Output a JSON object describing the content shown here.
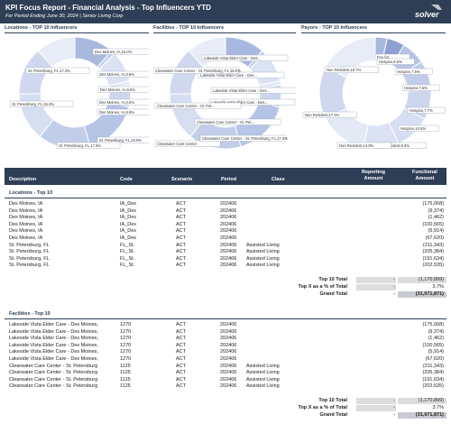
{
  "header": {
    "title": "KPI Focus Report - Financial Analysis - Top Influencers YTD",
    "subtitle": "For Period Ending June 30, 2024 | Senior Living Corp",
    "logo_text": "solver"
  },
  "panels": [
    {
      "title": "Locations - TOP 10 Influencers",
      "labels": [
        "Des Moines, IA,15.0%",
        "Des Moines, IA,0.8%",
        "Des Moines, IA,8.6%",
        "Des Moines, IA,0.5%",
        "Des Moines, IA,5.8%",
        "St. Petersburg, FL,18.0%",
        "St. Petersburg, FL,17.5%",
        "St. Petersburg, FL,16.4%",
        "St. Petersburg, FL,17.3%"
      ],
      "colors": [
        "#a9b8de",
        "#c7d1ec",
        "#dbe2f4",
        "#e4e9f6",
        "#ccd6ee",
        "#b6c4e6",
        "#c2cdea",
        "#d6def2",
        "#cfd8ef",
        "#e8ecf7"
      ]
    },
    {
      "title": "Facilities - TOP 10 Influencers",
      "labels": [
        "Lakeside Vista Elder Care - Des...",
        "Lakeside Vista Elder Care - Des...",
        "Lakeside Vista Elder Care - Des...",
        "Lakeside Vista Elder Care - Des...",
        "Clearwater Care Center - St. Pet...",
        "Clearwater Care Center - St. Pet...",
        "Clearwater Care Center",
        "Clearwater Care Center - St. Petersburg, FL,17.3%",
        "Clearwater Care Center - St. Petersburg, FL,15.0%"
      ],
      "colors": [
        "#a9b8de",
        "#c7d1ec",
        "#dbe2f4",
        "#e4e9f6",
        "#ccd6ee",
        "#b6c4e6",
        "#c2cdea",
        "#d6def2",
        "#cfd8ef",
        "#e8ecf7"
      ]
    },
    {
      "title": "Payors - TOP 10 Influencers",
      "labels": [
        "Fee for ...",
        "Hospice,6.5%",
        "Hospice,7.5%",
        "Hospice,7.5%",
        "Hospice,7.7%",
        "Hospice,10.5%",
        "Non Resident,9.4%",
        "Non Resident,14.8%",
        "Non Resident,17.4%",
        "Non Resident,19.7%"
      ],
      "colors": [
        "#a9b8de",
        "#8f9fd0",
        "#b6c4e6",
        "#c2cdea",
        "#ccd6ee",
        "#d6def2",
        "#dbe2f4",
        "#e4e9f6",
        "#cfd8ef",
        "#e8ecf7"
      ]
    }
  ],
  "table": {
    "columns": {
      "desc": "Description",
      "code": "Code",
      "scenario": "Scenario",
      "period": "Period",
      "class": "Class",
      "reporting_l1": "Reporting",
      "reporting_l2": "Amount",
      "functional_l1": "Functional",
      "functional_l2": "Amount"
    },
    "sections": [
      {
        "title": "Locations - Top 10",
        "rows": [
          {
            "desc": "Des Moines, IA",
            "code": "IA_Des",
            "scen": "ACT",
            "per": "202406",
            "cls": "",
            "amt": "(175,068)"
          },
          {
            "desc": "Des Moines, IA",
            "code": "IA_Des",
            "scen": "ACT",
            "per": "202406",
            "cls": "",
            "amt": "(9,374)"
          },
          {
            "desc": "Des Moines, IA",
            "code": "IA_Des",
            "scen": "ACT",
            "per": "202406",
            "cls": "",
            "amt": "(1,462)"
          },
          {
            "desc": "Des Moines, IA",
            "code": "IA_Des",
            "scen": "ACT",
            "per": "202406",
            "cls": "",
            "amt": "(100,565)"
          },
          {
            "desc": "Des Moines, IA",
            "code": "IA_Des",
            "scen": "ACT",
            "per": "202406",
            "cls": "",
            "amt": "(5,914)"
          },
          {
            "desc": "Des Moines, IA",
            "code": "IA_Des",
            "scen": "ACT",
            "per": "202406",
            "cls": "",
            "amt": "(67,620)"
          },
          {
            "desc": "St. Petersburg, FL",
            "code": "FL_St.",
            "scen": "ACT",
            "per": "202406",
            "cls": "Assisted Living",
            "amt": "(211,343)"
          },
          {
            "desc": "St. Petersburg, FL",
            "code": "FL_St.",
            "scen": "ACT",
            "per": "202406",
            "cls": "Assisted Living",
            "amt": "(205,384)"
          },
          {
            "desc": "St. Petersburg, FL",
            "code": "FL_St.",
            "scen": "ACT",
            "per": "202406",
            "cls": "Assisted Living",
            "amt": "(191,634)"
          },
          {
            "desc": "St. Petersburg, FL",
            "code": "FL_St.",
            "scen": "ACT",
            "per": "202406",
            "cls": "Assisted Living",
            "amt": "(202,535)"
          }
        ],
        "totals": [
          {
            "label": "Top 10 Total",
            "rep": "-",
            "amt": "(1,170,899)"
          },
          {
            "label": "Top X as a % of Total",
            "rep": "-",
            "amt": "3.7%"
          },
          {
            "label": "Grand Total",
            "rep": "-",
            "amt": "(31,971,871)"
          }
        ]
      },
      {
        "title": "Facilities - Top 10",
        "rows": [
          {
            "desc": "Lakeside Vista Elder Care - Des Moines,",
            "code": "1270",
            "scen": "ACT",
            "per": "202406",
            "cls": "",
            "amt": "(175,068)"
          },
          {
            "desc": "Lakeside Vista Elder Care - Des Moines,",
            "code": "1270",
            "scen": "ACT",
            "per": "202406",
            "cls": "",
            "amt": "(9,374)"
          },
          {
            "desc": "Lakeside Vista Elder Care - Des Moines,",
            "code": "1270",
            "scen": "ACT",
            "per": "202406",
            "cls": "",
            "amt": "(1,462)"
          },
          {
            "desc": "Lakeside Vista Elder Care - Des Moines,",
            "code": "1270",
            "scen": "ACT",
            "per": "202406",
            "cls": "",
            "amt": "(100,565)"
          },
          {
            "desc": "Lakeside Vista Elder Care - Des Moines,",
            "code": "1270",
            "scen": "ACT",
            "per": "202406",
            "cls": "",
            "amt": "(5,914)"
          },
          {
            "desc": "Lakeside Vista Elder Care - Des Moines,",
            "code": "1270",
            "scen": "ACT",
            "per": "202406",
            "cls": "",
            "amt": "(67,620)"
          },
          {
            "desc": "Clearwater Care Center - St. Petersburg",
            "code": "1125",
            "scen": "ACT",
            "per": "202406",
            "cls": "Assisted Living",
            "amt": "(211,343)"
          },
          {
            "desc": "Clearwater Care Center - St. Petersburg",
            "code": "1125",
            "scen": "ACT",
            "per": "202406",
            "cls": "Assisted Living",
            "amt": "(205,384)"
          },
          {
            "desc": "Clearwater Care Center - St. Petersburg",
            "code": "1125",
            "scen": "ACT",
            "per": "202406",
            "cls": "Assisted Living",
            "amt": "(191,634)"
          },
          {
            "desc": "Clearwater Care Center - St. Petersburg",
            "code": "1125",
            "scen": "ACT",
            "per": "202406",
            "cls": "Assisted Living",
            "amt": "(202,535)"
          }
        ],
        "totals": [
          {
            "label": "Top 10 Total",
            "rep": "-",
            "amt": "(1,170,899)"
          },
          {
            "label": "Top X as a % of Total",
            "rep": "-",
            "amt": "3.7%"
          },
          {
            "label": "Grand Total",
            "rep": "-",
            "amt": "(31,971,871)"
          }
        ]
      }
    ]
  }
}
